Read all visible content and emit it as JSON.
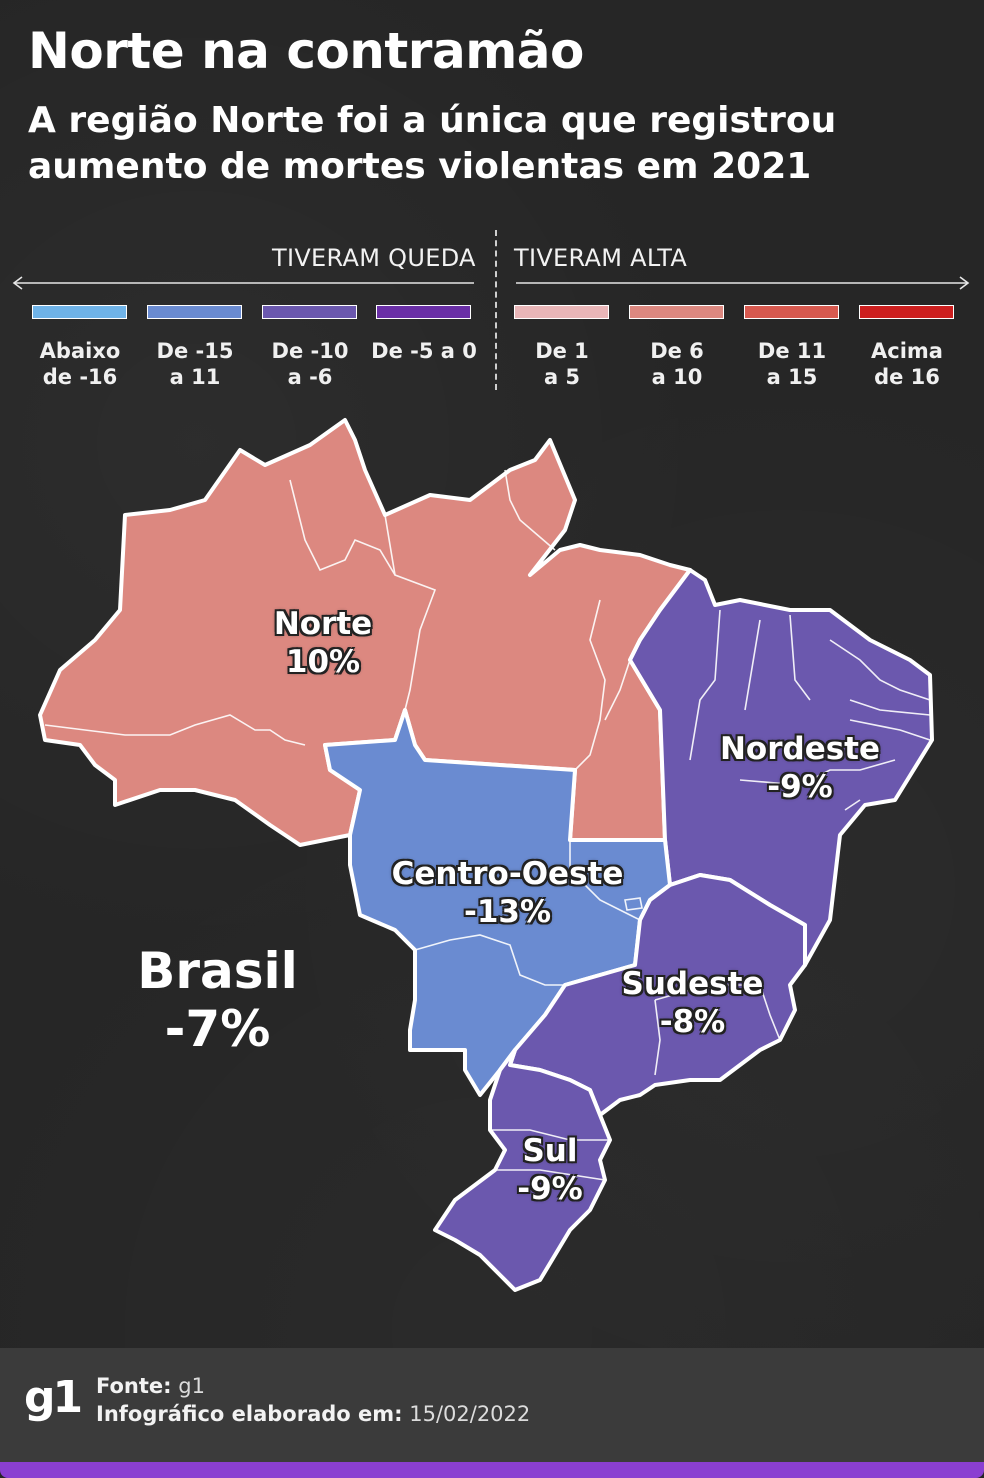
{
  "header": {
    "title": "Norte na contramão",
    "subtitle": "A região Norte foi a única que registrou aumento de mortes violentas em 2021"
  },
  "legend": {
    "drop_label": "TIVERAM QUEDA",
    "rise_label": "TIVERAM ALTA",
    "items": [
      {
        "label": "Abaixo\nde -16",
        "color": "#6fb3e8"
      },
      {
        "label": "De -15\na 11",
        "color": "#6a8bd1"
      },
      {
        "label": "De -10\na -6",
        "color": "#6b58ae"
      },
      {
        "label": "De -5 a 0",
        "color": "#6a2fa6"
      },
      {
        "label": "De 1\na 5",
        "color": "#e9b6b8"
      },
      {
        "label": "De 6\na 10",
        "color": "#dc8880"
      },
      {
        "label": "De 11\na 15",
        "color": "#d7594f"
      },
      {
        "label": "Acima\nde 16",
        "color": "#cc1f1f"
      }
    ]
  },
  "regions": {
    "norte": {
      "name": "Norte",
      "value": "10%",
      "color": "#dc8880"
    },
    "nordeste": {
      "name": "Nordeste",
      "value": "-9%",
      "color": "#6b58ae"
    },
    "centro_oeste": {
      "name": "Centro-Oeste",
      "value": "-13%",
      "color": "#6a8bd1"
    },
    "sudeste": {
      "name": "Sudeste",
      "value": "-8%",
      "color": "#6b58ae"
    },
    "sul": {
      "name": "Sul",
      "value": "-9%",
      "color": "#6b58ae"
    }
  },
  "national": {
    "name": "Brasil",
    "value": "-7%"
  },
  "footer": {
    "logo": "g1",
    "source_label": "Fonte:",
    "source_value": "g1",
    "date_label": "Infográfico elaborado em:",
    "date_value": "15/02/2022",
    "accent_color": "#8a3fd1"
  }
}
